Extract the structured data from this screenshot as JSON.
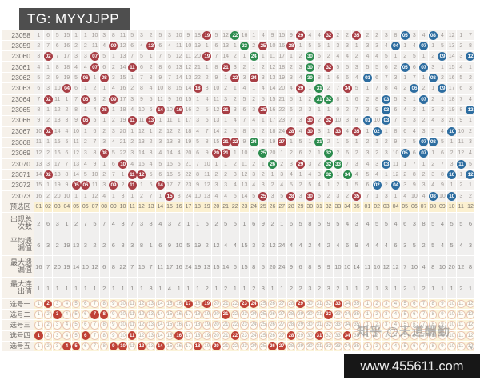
{
  "header": {
    "tg_label": "TG: MYYJJPP"
  },
  "footer": {
    "site": "www.455611.com",
    "watermark": "知乎 @天道酬勤"
  },
  "colors": {
    "red_ball": "#a83e45",
    "green_ball": "#2c8c4e",
    "blue_ball": "#2d6da0",
    "pick_fill": "#bf4136",
    "zone_header_bg": "#fbf0d0",
    "pick_row_bg": "#fbf3d8",
    "tg_bg": "#4e4e4e",
    "footer_bg": "#171717"
  },
  "chart_data": {
    "type": "table",
    "title": "Lottery trend chart (front zone 01-35, back zone 01-12)",
    "red_count": 35,
    "blue_count": 12,
    "draws": [
      {
        "issue": "23058",
        "red": [
          [
            19,
            "r"
          ],
          [
            22,
            "g"
          ],
          [
            29,
            "r"
          ],
          [
            32,
            "r"
          ],
          [
            35,
            "r"
          ]
        ],
        "blue": [
          5,
          8
        ]
      },
      {
        "issue": "23059",
        "red": [
          [
            9,
            "r"
          ],
          [
            13,
            "r"
          ],
          [
            23,
            "g"
          ],
          [
            25,
            "r"
          ],
          [
            28,
            "r"
          ]
        ],
        "blue": [
          4,
          7
        ]
      },
      {
        "issue": "23060",
        "red": [
          [
            2,
            "r"
          ],
          [
            7,
            "r"
          ],
          [
            19,
            "r"
          ],
          [
            24,
            "g"
          ],
          [
            30,
            "g"
          ]
        ],
        "blue": [
          9,
          12
        ]
      },
      {
        "issue": "23061",
        "red": [
          [
            7,
            "r"
          ],
          [
            11,
            "r"
          ],
          [
            21,
            "r"
          ],
          [
            30,
            "g"
          ],
          [
            32,
            "r"
          ]
        ],
        "blue": [
          5,
          7
        ]
      },
      {
        "issue": "23062",
        "red": [
          [
            6,
            "r"
          ],
          [
            8,
            "r"
          ],
          [
            22,
            "r"
          ],
          [
            24,
            "r"
          ],
          [
            30,
            "g"
          ]
        ],
        "blue": [
          1,
          8
        ]
      },
      {
        "issue": "23063",
        "red": [
          [
            4,
            "r"
          ],
          [
            18,
            "r"
          ],
          [
            29,
            "r"
          ],
          [
            31,
            "g"
          ],
          [
            34,
            "r"
          ]
        ],
        "blue": [
          6,
          9
        ]
      },
      {
        "issue": "23064",
        "red": [
          [
            2,
            "r"
          ],
          [
            6,
            "r"
          ],
          [
            9,
            "r"
          ],
          [
            31,
            "g"
          ],
          [
            32,
            "g"
          ]
        ],
        "blue": [
          3,
          7
        ]
      },
      {
        "issue": "23065",
        "red": [
          [
            8,
            "r"
          ],
          [
            14,
            "r"
          ],
          [
            16,
            "r"
          ],
          [
            21,
            "r"
          ],
          [
            25,
            "r"
          ]
        ],
        "blue": [
          3,
          12
        ]
      },
      {
        "issue": "23066",
        "red": [
          [
            6,
            "r"
          ],
          [
            11,
            "r"
          ],
          [
            13,
            "r"
          ],
          [
            30,
            "r"
          ],
          [
            32,
            "r"
          ]
        ],
        "blue": [
          1,
          3
        ]
      },
      {
        "issue": "23067",
        "red": [
          [
            2,
            "r"
          ],
          [
            28,
            "r"
          ],
          [
            30,
            "r"
          ],
          [
            33,
            "r"
          ],
          [
            35,
            "r"
          ]
        ],
        "blue": [
          2,
          10
        ]
      },
      {
        "issue": "23068",
        "red": [
          [
            21,
            "r"
          ],
          [
            22,
            "r"
          ],
          [
            24,
            "g"
          ],
          [
            27,
            "r"
          ],
          [
            31,
            "g"
          ]
        ],
        "blue": [
          7,
          8
        ]
      },
      {
        "issue": "23069",
        "red": [
          [
            8,
            "r"
          ],
          [
            20,
            "r"
          ],
          [
            21,
            "r"
          ],
          [
            25,
            "g"
          ],
          [
            32,
            "g"
          ]
        ],
        "blue": [
          5,
          7
        ]
      },
      {
        "issue": "23070",
        "red": [
          [
            10,
            "r"
          ],
          [
            26,
            "g"
          ],
          [
            29,
            "r"
          ],
          [
            32,
            "g"
          ],
          [
            33,
            "g"
          ]
        ],
        "blue": [
          3,
          11
        ]
      },
      {
        "issue": "23071",
        "red": [
          [
            2,
            "r"
          ],
          [
            11,
            "r"
          ],
          [
            12,
            "r"
          ],
          [
            32,
            "g"
          ],
          [
            34,
            "g"
          ]
        ],
        "blue": [
          10,
          12
        ]
      },
      {
        "issue": "23072",
        "red": [
          [
            5,
            "r"
          ],
          [
            6,
            "r"
          ],
          [
            9,
            "r"
          ],
          [
            11,
            "r"
          ],
          [
            14,
            "r"
          ]
        ],
        "blue": [
          2,
          4
        ]
      },
      {
        "issue": "23073",
        "red": [
          [
            15,
            "r"
          ],
          [
            25,
            "r"
          ],
          [
            28,
            "r"
          ],
          [
            30,
            "r"
          ],
          [
            35,
            "r"
          ]
        ],
        "blue": [
          8,
          10
        ]
      }
    ],
    "first_row_miss_red": [
      1,
      6,
      5,
      15,
      1,
      1,
      10,
      3,
      8,
      11,
      5,
      3,
      2,
      5,
      3,
      10,
      9,
      18,
      0,
      5,
      12,
      0,
      16,
      1,
      4,
      9,
      15,
      9,
      0,
      4,
      4,
      0,
      2,
      2,
      0
    ],
    "first_row_miss_blue": [
      2,
      2,
      3,
      8,
      0,
      3,
      4,
      0,
      4,
      12,
      1,
      7
    ],
    "summary": {
      "zone_label": "预选区",
      "rows": [
        {
          "label": "出现总次数",
          "red": [
            2,
            6,
            3,
            1,
            2,
            7,
            5,
            7,
            4,
            3,
            7,
            3,
            8,
            4,
            3,
            2,
            1,
            1,
            5,
            2,
            5,
            5,
            1,
            6,
            9,
            2,
            1,
            6,
            5,
            8,
            5,
            9,
            5,
            4,
            3
          ],
          "blue": [
            4,
            5,
            5,
            4,
            6,
            3,
            8,
            5,
            4,
            5,
            5,
            6
          ]
        },
        {
          "label": "平均遗漏值",
          "red": [
            6,
            3,
            2,
            19,
            13,
            3,
            2,
            2,
            6,
            8,
            3,
            8,
            1,
            6,
            9,
            10,
            5,
            19,
            2,
            12,
            4,
            4,
            15,
            3,
            2,
            12,
            24,
            4,
            4,
            2,
            4,
            2,
            4,
            6,
            9
          ],
          "blue": [
            4,
            4,
            4,
            6,
            3,
            5,
            2,
            5,
            4,
            5,
            4,
            3
          ]
        },
        {
          "label": "最大遗漏值",
          "red": [
            16,
            7,
            20,
            19,
            14,
            10,
            12,
            6,
            8,
            22,
            7,
            15,
            7,
            11,
            17,
            16,
            24,
            19,
            13,
            15,
            14,
            6,
            15,
            8,
            5,
            20,
            24,
            9,
            6,
            8,
            8,
            9,
            10,
            10,
            14
          ],
          "blue": [
            11,
            10,
            12,
            12,
            7,
            10,
            4,
            8,
            10,
            20,
            12,
            8
          ]
        },
        {
          "label": "最大连出值",
          "red": [
            1,
            1,
            1,
            1,
            1,
            1,
            1,
            2,
            1,
            1,
            1,
            1,
            3,
            1,
            4,
            1,
            1,
            1,
            2,
            1,
            2,
            1,
            1,
            2,
            3,
            1,
            1,
            2,
            2,
            3,
            2,
            3,
            2,
            1,
            1
          ],
          "blue": [
            2,
            1,
            3,
            1,
            2,
            1,
            2,
            1,
            1,
            1,
            2,
            1
          ]
        }
      ]
    },
    "selections": [
      {
        "label": "选号一",
        "red": [
          2,
          17,
          19,
          23,
          24,
          29,
          33
        ],
        "blue": []
      },
      {
        "label": "选号二",
        "red": [
          3,
          7,
          8,
          21,
          32
        ],
        "blue": []
      },
      {
        "label": "选号三",
        "red": [],
        "blue": []
      },
      {
        "label": "选号四",
        "red": [
          1,
          6,
          11,
          16,
          22,
          28,
          31,
          34
        ],
        "blue": []
      },
      {
        "label": "选号五",
        "red": [
          4,
          5,
          9,
          10,
          12,
          14,
          18,
          20,
          26,
          27
        ],
        "blue": []
      }
    ]
  }
}
